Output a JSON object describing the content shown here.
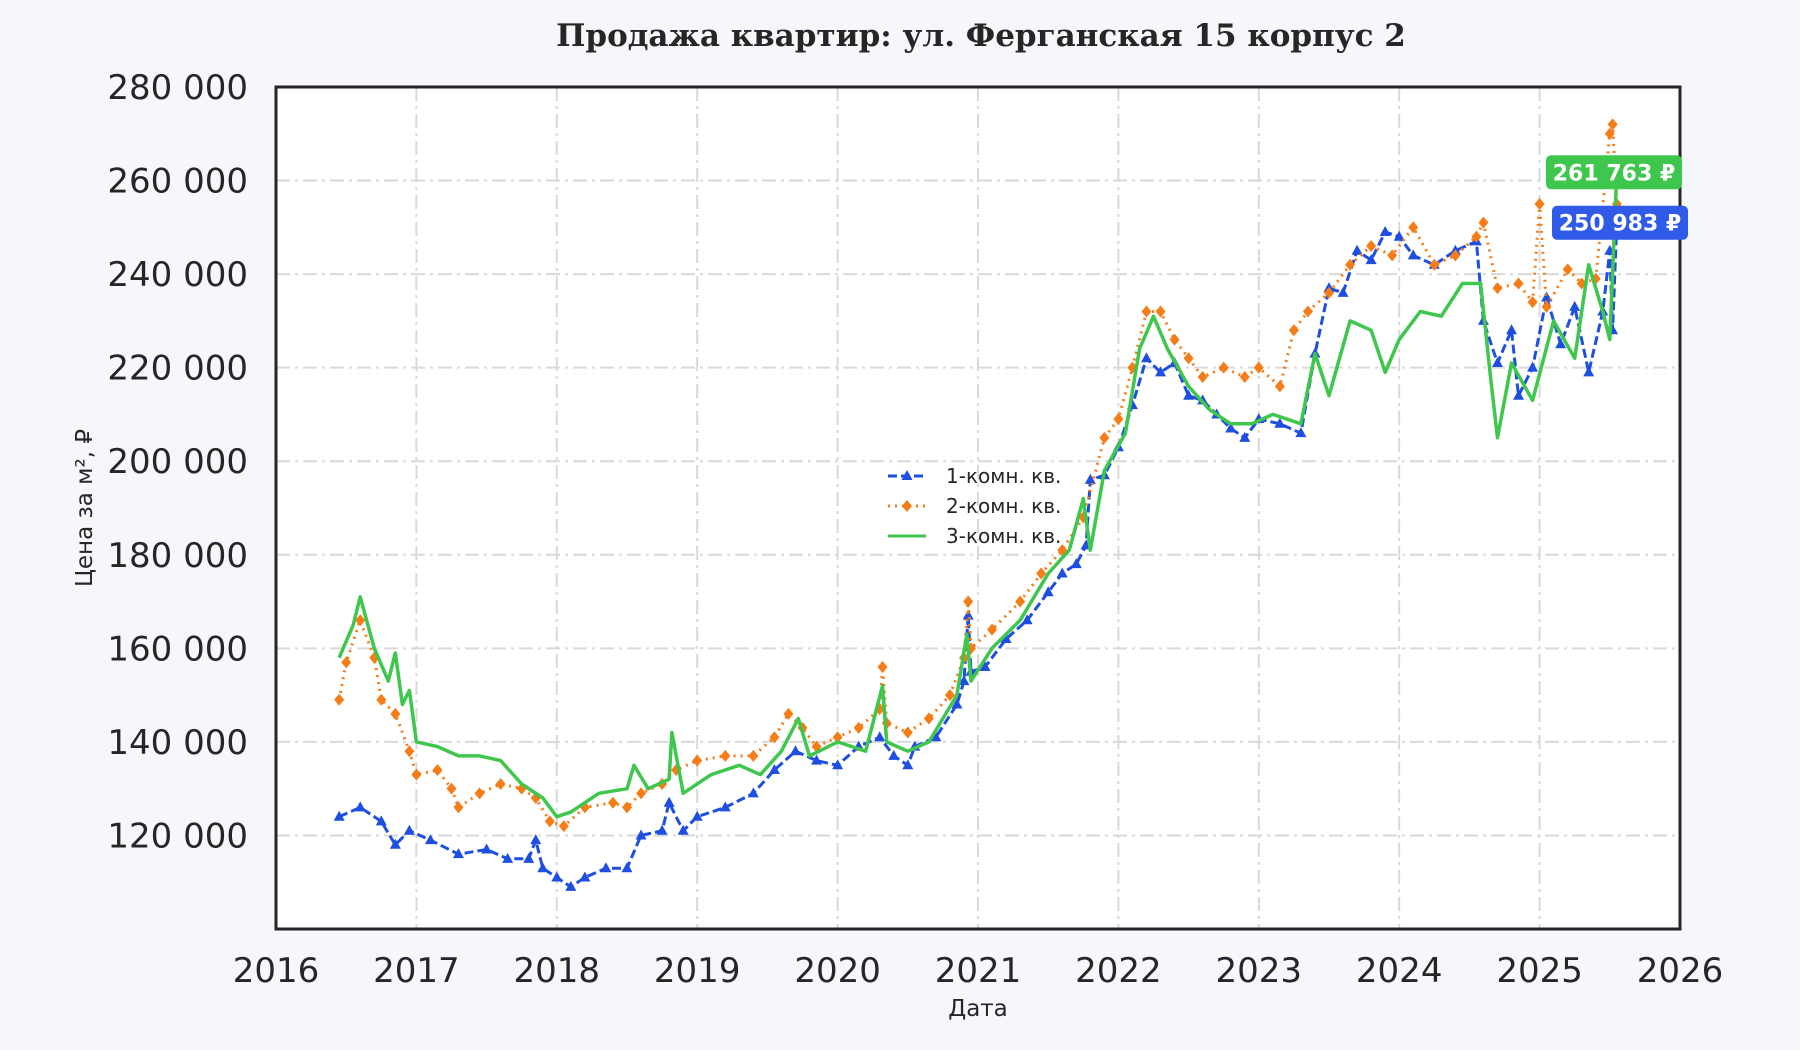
{
  "chart_data": {
    "type": "line",
    "title": "Продажа квартир: ул. Ферганская 15 корпус 2",
    "xlabel": "Дата",
    "ylabel": "Цена за м², ₽",
    "xlim": [
      2016,
      2026
    ],
    "ylim": [
      100000,
      280000
    ],
    "x_ticks": [
      "2016",
      "2017",
      "2018",
      "2019",
      "2020",
      "2021",
      "2022",
      "2023",
      "2024",
      "2025",
      "2026"
    ],
    "y_ticks": [
      {
        "value": 120000,
        "label": "120 000"
      },
      {
        "value": 140000,
        "label": "140 000"
      },
      {
        "value": 160000,
        "label": "160 000"
      },
      {
        "value": 180000,
        "label": "180 000"
      },
      {
        "value": 200000,
        "label": "200 000"
      },
      {
        "value": 220000,
        "label": "220 000"
      },
      {
        "value": 240000,
        "label": "240 000"
      },
      {
        "value": 260000,
        "label": "260 000"
      },
      {
        "value": 280000,
        "label": "280 000"
      }
    ],
    "grid": true,
    "legend_position": "center",
    "series": [
      {
        "name": "1-комн. кв.",
        "color": "#1f4fe0",
        "style": "dashed-triangle",
        "points": [
          [
            2016.45,
            124000
          ],
          [
            2016.6,
            126000
          ],
          [
            2016.75,
            123000
          ],
          [
            2016.85,
            118000
          ],
          [
            2016.95,
            121000
          ],
          [
            2017.1,
            119000
          ],
          [
            2017.3,
            116000
          ],
          [
            2017.5,
            117000
          ],
          [
            2017.65,
            115000
          ],
          [
            2017.8,
            115000
          ],
          [
            2017.85,
            119000
          ],
          [
            2017.9,
            113000
          ],
          [
            2018.0,
            111000
          ],
          [
            2018.1,
            109000
          ],
          [
            2018.2,
            111000
          ],
          [
            2018.35,
            113000
          ],
          [
            2018.5,
            113000
          ],
          [
            2018.6,
            120000
          ],
          [
            2018.75,
            121000
          ],
          [
            2018.8,
            127000
          ],
          [
            2018.9,
            121000
          ],
          [
            2019.0,
            124000
          ],
          [
            2019.2,
            126000
          ],
          [
            2019.4,
            129000
          ],
          [
            2019.55,
            134000
          ],
          [
            2019.7,
            138000
          ],
          [
            2019.85,
            136000
          ],
          [
            2020.0,
            135000
          ],
          [
            2020.15,
            139000
          ],
          [
            2020.3,
            141000
          ],
          [
            2020.4,
            137000
          ],
          [
            2020.5,
            135000
          ],
          [
            2020.55,
            139000
          ],
          [
            2020.7,
            141000
          ],
          [
            2020.85,
            148000
          ],
          [
            2020.9,
            153000
          ],
          [
            2020.93,
            167000
          ],
          [
            2020.95,
            155000
          ],
          [
            2021.05,
            156000
          ],
          [
            2021.2,
            162000
          ],
          [
            2021.35,
            166000
          ],
          [
            2021.5,
            172000
          ],
          [
            2021.6,
            176000
          ],
          [
            2021.7,
            178000
          ],
          [
            2021.77,
            182000
          ],
          [
            2021.8,
            196000
          ],
          [
            2021.9,
            197000
          ],
          [
            2022.0,
            203000
          ],
          [
            2022.1,
            212000
          ],
          [
            2022.2,
            222000
          ],
          [
            2022.3,
            219000
          ],
          [
            2022.4,
            221000
          ],
          [
            2022.5,
            214000
          ],
          [
            2022.6,
            213000
          ],
          [
            2022.7,
            210000
          ],
          [
            2022.8,
            207000
          ],
          [
            2022.9,
            205000
          ],
          [
            2023.0,
            209000
          ],
          [
            2023.15,
            208000
          ],
          [
            2023.3,
            206000
          ],
          [
            2023.4,
            223000
          ],
          [
            2023.5,
            237000
          ],
          [
            2023.6,
            236000
          ],
          [
            2023.7,
            245000
          ],
          [
            2023.8,
            243000
          ],
          [
            2023.9,
            249000
          ],
          [
            2024.0,
            248000
          ],
          [
            2024.1,
            244000
          ],
          [
            2024.25,
            242000
          ],
          [
            2024.4,
            245000
          ],
          [
            2024.55,
            247000
          ],
          [
            2024.6,
            230000
          ],
          [
            2024.7,
            221000
          ],
          [
            2024.8,
            228000
          ],
          [
            2024.85,
            214000
          ],
          [
            2024.95,
            220000
          ],
          [
            2025.05,
            235000
          ],
          [
            2025.15,
            225000
          ],
          [
            2025.25,
            233000
          ],
          [
            2025.35,
            219000
          ],
          [
            2025.45,
            232000
          ],
          [
            2025.5,
            245000
          ],
          [
            2025.52,
            228000
          ],
          [
            2025.55,
            250983
          ]
        ]
      },
      {
        "name": "2-комн. кв.",
        "color": "#f57c17",
        "style": "dotted-diamond",
        "points": [
          [
            2016.45,
            149000
          ],
          [
            2016.5,
            157000
          ],
          [
            2016.6,
            166000
          ],
          [
            2016.7,
            158000
          ],
          [
            2016.75,
            149000
          ],
          [
            2016.85,
            146000
          ],
          [
            2016.95,
            138000
          ],
          [
            2017.0,
            133000
          ],
          [
            2017.15,
            134000
          ],
          [
            2017.25,
            130000
          ],
          [
            2017.3,
            126000
          ],
          [
            2017.45,
            129000
          ],
          [
            2017.6,
            131000
          ],
          [
            2017.75,
            130000
          ],
          [
            2017.85,
            128000
          ],
          [
            2017.95,
            123000
          ],
          [
            2018.05,
            122000
          ],
          [
            2018.2,
            126000
          ],
          [
            2018.4,
            127000
          ],
          [
            2018.5,
            126000
          ],
          [
            2018.6,
            129000
          ],
          [
            2018.75,
            131000
          ],
          [
            2018.85,
            134000
          ],
          [
            2019.0,
            136000
          ],
          [
            2019.2,
            137000
          ],
          [
            2019.4,
            137000
          ],
          [
            2019.55,
            141000
          ],
          [
            2019.65,
            146000
          ],
          [
            2019.75,
            143000
          ],
          [
            2019.85,
            139000
          ],
          [
            2020.0,
            141000
          ],
          [
            2020.15,
            143000
          ],
          [
            2020.3,
            147000
          ],
          [
            2020.32,
            156000
          ],
          [
            2020.35,
            144000
          ],
          [
            2020.5,
            142000
          ],
          [
            2020.65,
            145000
          ],
          [
            2020.8,
            150000
          ],
          [
            2020.9,
            158000
          ],
          [
            2020.93,
            170000
          ],
          [
            2020.95,
            160000
          ],
          [
            2021.1,
            164000
          ],
          [
            2021.3,
            170000
          ],
          [
            2021.45,
            176000
          ],
          [
            2021.6,
            181000
          ],
          [
            2021.75,
            188000
          ],
          [
            2021.9,
            205000
          ],
          [
            2022.0,
            209000
          ],
          [
            2022.1,
            220000
          ],
          [
            2022.2,
            232000
          ],
          [
            2022.3,
            232000
          ],
          [
            2022.4,
            226000
          ],
          [
            2022.5,
            222000
          ],
          [
            2022.6,
            218000
          ],
          [
            2022.75,
            220000
          ],
          [
            2022.9,
            218000
          ],
          [
            2023.0,
            220000
          ],
          [
            2023.15,
            216000
          ],
          [
            2023.25,
            228000
          ],
          [
            2023.35,
            232000
          ],
          [
            2023.5,
            236000
          ],
          [
            2023.65,
            242000
          ],
          [
            2023.8,
            246000
          ],
          [
            2023.95,
            244000
          ],
          [
            2024.1,
            250000
          ],
          [
            2024.25,
            242000
          ],
          [
            2024.4,
            244000
          ],
          [
            2024.55,
            248000
          ],
          [
            2024.6,
            251000
          ],
          [
            2024.7,
            237000
          ],
          [
            2024.85,
            238000
          ],
          [
            2024.95,
            234000
          ],
          [
            2025.0,
            255000
          ],
          [
            2025.05,
            233000
          ],
          [
            2025.2,
            241000
          ],
          [
            2025.3,
            238000
          ],
          [
            2025.4,
            239000
          ],
          [
            2025.5,
            270000
          ],
          [
            2025.52,
            272000
          ],
          [
            2025.55,
            255000
          ]
        ]
      },
      {
        "name": "3-комн. кв.",
        "color": "#3ec64d",
        "style": "solid",
        "points": [
          [
            2016.45,
            158000
          ],
          [
            2016.55,
            165000
          ],
          [
            2016.6,
            171000
          ],
          [
            2016.7,
            160000
          ],
          [
            2016.8,
            153000
          ],
          [
            2016.85,
            159000
          ],
          [
            2016.9,
            148000
          ],
          [
            2016.95,
            151000
          ],
          [
            2017.0,
            140000
          ],
          [
            2017.15,
            139000
          ],
          [
            2017.3,
            137000
          ],
          [
            2017.45,
            137000
          ],
          [
            2017.6,
            136000
          ],
          [
            2017.75,
            131000
          ],
          [
            2017.9,
            128000
          ],
          [
            2018.0,
            124000
          ],
          [
            2018.1,
            125000
          ],
          [
            2018.3,
            129000
          ],
          [
            2018.5,
            130000
          ],
          [
            2018.55,
            135000
          ],
          [
            2018.65,
            130000
          ],
          [
            2018.8,
            132000
          ],
          [
            2018.82,
            142000
          ],
          [
            2018.9,
            129000
          ],
          [
            2019.1,
            133000
          ],
          [
            2019.3,
            135000
          ],
          [
            2019.45,
            133000
          ],
          [
            2019.6,
            138000
          ],
          [
            2019.72,
            145000
          ],
          [
            2019.8,
            137000
          ],
          [
            2020.0,
            140000
          ],
          [
            2020.2,
            138000
          ],
          [
            2020.32,
            152000
          ],
          [
            2020.35,
            140000
          ],
          [
            2020.5,
            138000
          ],
          [
            2020.65,
            140000
          ],
          [
            2020.85,
            150000
          ],
          [
            2020.92,
            163000
          ],
          [
            2020.95,
            153000
          ],
          [
            2021.1,
            160000
          ],
          [
            2021.3,
            166000
          ],
          [
            2021.5,
            176000
          ],
          [
            2021.65,
            181000
          ],
          [
            2021.75,
            192000
          ],
          [
            2021.8,
            181000
          ],
          [
            2021.9,
            198000
          ],
          [
            2022.05,
            206000
          ],
          [
            2022.15,
            224000
          ],
          [
            2022.25,
            231000
          ],
          [
            2022.35,
            224000
          ],
          [
            2022.5,
            216000
          ],
          [
            2022.65,
            211000
          ],
          [
            2022.8,
            208000
          ],
          [
            2022.95,
            208000
          ],
          [
            2023.1,
            210000
          ],
          [
            2023.3,
            208000
          ],
          [
            2023.4,
            223000
          ],
          [
            2023.5,
            214000
          ],
          [
            2023.65,
            230000
          ],
          [
            2023.8,
            228000
          ],
          [
            2023.9,
            219000
          ],
          [
            2024.0,
            226000
          ],
          [
            2024.15,
            232000
          ],
          [
            2024.3,
            231000
          ],
          [
            2024.45,
            238000
          ],
          [
            2024.58,
            238000
          ],
          [
            2024.65,
            218000
          ],
          [
            2024.7,
            205000
          ],
          [
            2024.8,
            221000
          ],
          [
            2024.95,
            213000
          ],
          [
            2025.1,
            230000
          ],
          [
            2025.25,
            222000
          ],
          [
            2025.35,
            242000
          ],
          [
            2025.45,
            232000
          ],
          [
            2025.5,
            226000
          ],
          [
            2025.55,
            261763
          ]
        ]
      }
    ],
    "annotations": [
      {
        "series": "3-комн. кв.",
        "label": "261 763 ₽",
        "value": 261763,
        "color": "#3ec64d"
      },
      {
        "series": "1-комн. кв.",
        "label": "250 983 ₽",
        "value": 250983,
        "color": "#2f5be8"
      }
    ]
  }
}
